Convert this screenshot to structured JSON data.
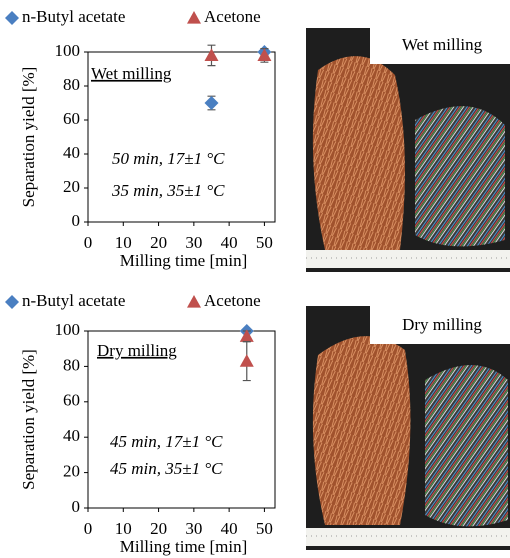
{
  "chart_data": [
    {
      "type": "scatter",
      "series": [
        {
          "name": "n-Butyl acetate",
          "color": "#4a7fc1",
          "marker": "diamond",
          "x": [
            35,
            50
          ],
          "values": [
            70,
            100
          ],
          "errors": [
            4,
            2
          ]
        },
        {
          "name": "Acetone",
          "color": "#c0504d",
          "marker": "triangle",
          "x": [
            35,
            50
          ],
          "values": [
            98,
            98
          ],
          "errors": [
            6,
            4
          ]
        }
      ],
      "xlim": [
        0,
        53
      ],
      "ylim": [
        0,
        100
      ],
      "xticks": [
        0,
        10,
        20,
        30,
        40,
        50
      ],
      "yticks": [
        0,
        20,
        40,
        60,
        80,
        100
      ],
      "xlabel": "Milling time [min]",
      "ylabel": "Separation yield [%]",
      "annotations": [
        "Wet milling",
        "50 min, 17±1 °C",
        "35 min, 35±1 °C"
      ],
      "photo_label": "Wet milling"
    },
    {
      "type": "scatter",
      "series": [
        {
          "name": "n-Butyl acetate",
          "color": "#4a7fc1",
          "marker": "diamond",
          "x": [
            45
          ],
          "values": [
            100
          ],
          "errors": [
            1
          ]
        },
        {
          "name": "Acetone",
          "color": "#c0504d",
          "marker": "triangle",
          "x": [
            45,
            45
          ],
          "values": [
            97,
            83
          ],
          "errors": [
            3,
            11
          ]
        }
      ],
      "xlim": [
        0,
        53
      ],
      "ylim": [
        0,
        100
      ],
      "xticks": [
        0,
        10,
        20,
        30,
        40,
        50
      ],
      "yticks": [
        0,
        20,
        40,
        60,
        80,
        100
      ],
      "xlabel": "Milling time [min]",
      "ylabel": "Separation yield [%]",
      "annotations": [
        "Dry milling",
        "45 min, 17±1 °C",
        "45 min, 35±1 °C"
      ],
      "photo_label": "Dry milling"
    }
  ]
}
